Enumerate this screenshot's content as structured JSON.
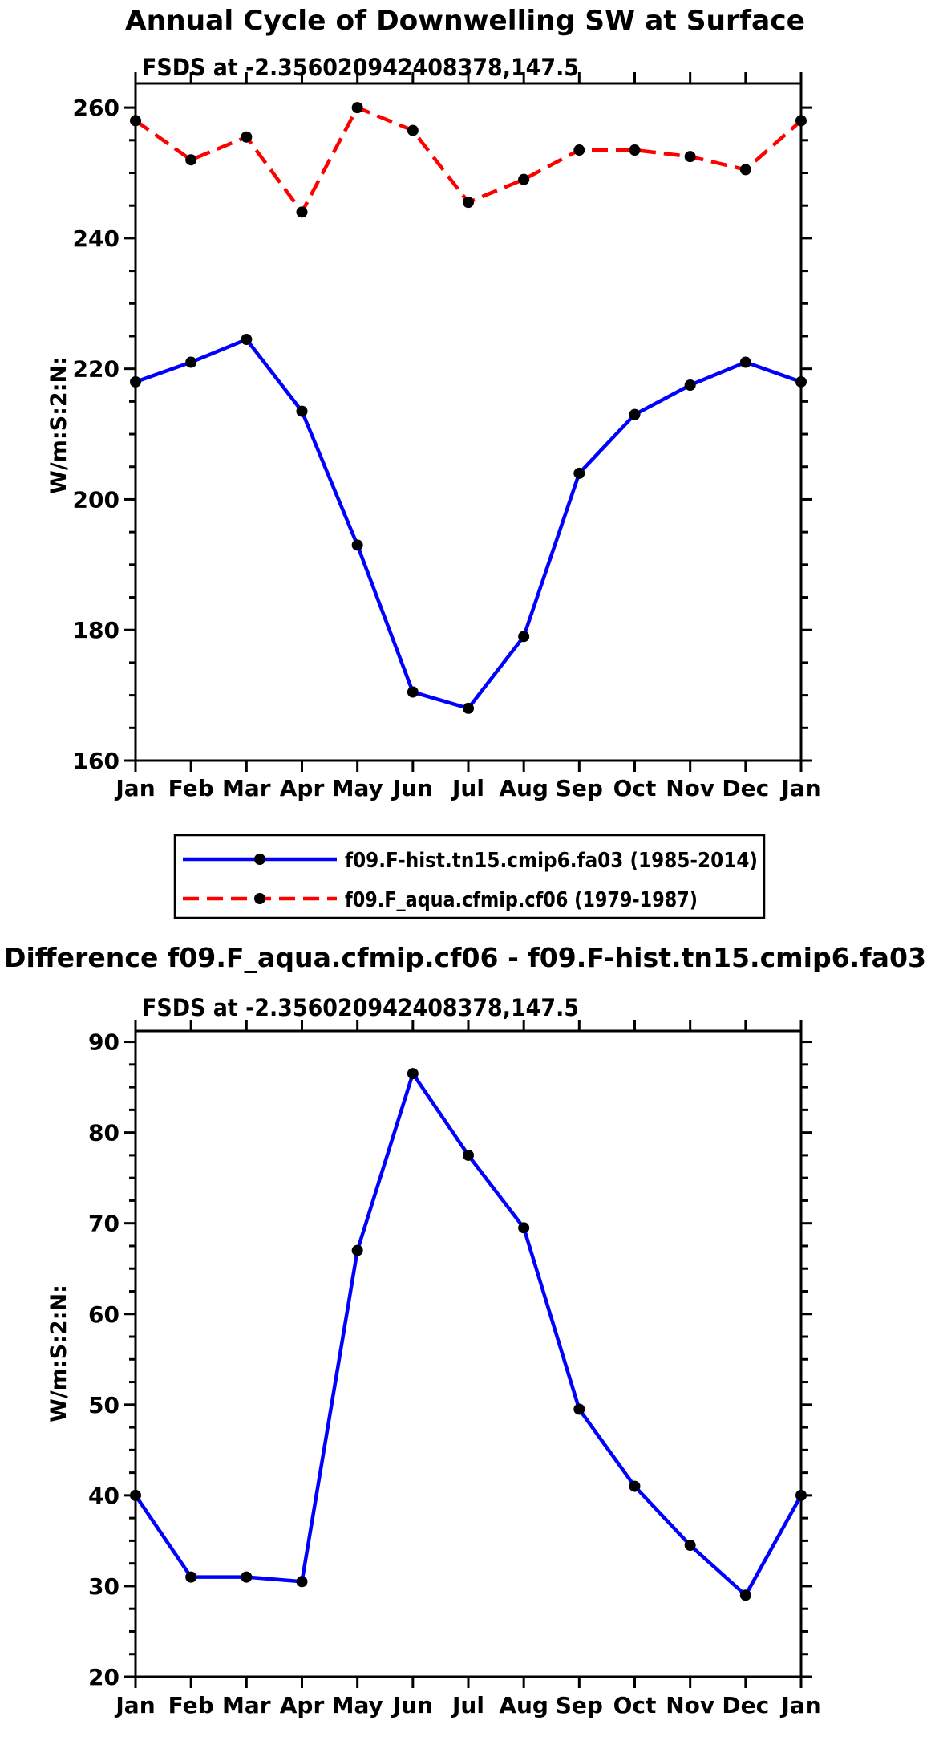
{
  "page": {
    "title": "Annual Cycle of Downwelling SW at Surface",
    "difference_title": "Difference f09.F_aqua.cfmip.cf06 - f09.F-hist.tn15.cmip6.fa03"
  },
  "colors": {
    "hist_line": "#0000ff",
    "aqua_line": "#ff0000",
    "marker": "#000000",
    "axis": "#000000"
  },
  "chart_data": [
    {
      "type": "line",
      "title": "FSDS at -2.356020942408378,147.5",
      "ylabel": "W/m:S:2:N:",
      "xlabel": "",
      "categories": [
        "Jan",
        "Feb",
        "Mar",
        "Apr",
        "May",
        "Jun",
        "Jul",
        "Aug",
        "Sep",
        "Oct",
        "Nov",
        "Dec",
        "Jan"
      ],
      "ylim": [
        160,
        263.7
      ],
      "yticks": [
        160,
        180,
        200,
        220,
        240,
        260
      ],
      "yminor": 5,
      "grid": false,
      "legend_position": "below",
      "series": [
        {
          "name": "f09.F-hist.tn15.cmip6.fa03 (1985-2014)",
          "color": "#0000ff",
          "style": "solid",
          "marker": "filled-circle",
          "values": [
            218,
            221,
            224.5,
            213.5,
            193,
            170.5,
            168,
            179,
            204,
            213,
            217.5,
            221,
            218
          ]
        },
        {
          "name": "f09.F_aqua.cfmip.cf06 (1979-1987)",
          "color": "#ff0000",
          "style": "dashed",
          "marker": "filled-circle",
          "values": [
            258,
            252,
            255.5,
            244,
            260,
            256.5,
            245.5,
            249,
            253.5,
            253.5,
            252.5,
            250.5,
            258
          ]
        }
      ]
    },
    {
      "type": "line",
      "title": "FSDS at -2.356020942408378,147.5",
      "ylabel": "W/m:S:2:N:",
      "xlabel": "",
      "categories": [
        "Jan",
        "Feb",
        "Mar",
        "Apr",
        "May",
        "Jun",
        "Jul",
        "Aug",
        "Sep",
        "Oct",
        "Nov",
        "Dec",
        "Jan"
      ],
      "ylim": [
        20,
        91.2
      ],
      "yticks": [
        20,
        30,
        40,
        50,
        60,
        70,
        80,
        90
      ],
      "yminor": 2.5,
      "grid": false,
      "legend_position": "none",
      "series": [
        {
          "name": "difference f09.F_aqua.cfmip.cf06 - f09.F-hist.tn15.cmip6.fa03",
          "color": "#0000ff",
          "style": "solid",
          "marker": "filled-circle",
          "values": [
            40,
            31,
            31,
            30.5,
            67,
            86.5,
            77.5,
            69.5,
            49.5,
            41,
            34.5,
            29,
            40
          ]
        }
      ]
    }
  ]
}
